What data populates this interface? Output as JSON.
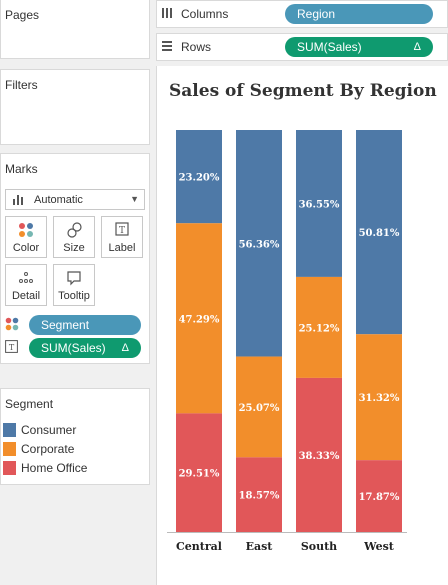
{
  "sidebar": {
    "pages": {
      "title": "Pages"
    },
    "filters": {
      "title": "Filters"
    },
    "marks": {
      "title": "Marks",
      "mark_type": "Automatic",
      "buttons": [
        {
          "label": "Color",
          "icon": "color-dots-icon"
        },
        {
          "label": "Size",
          "icon": "size-icon"
        },
        {
          "label": "Label",
          "icon": "label-icon"
        },
        {
          "label": "Detail",
          "icon": "detail-icon"
        },
        {
          "label": "Tooltip",
          "icon": "tooltip-icon"
        }
      ],
      "fields": [
        {
          "label": "Segment",
          "encoding": "color"
        },
        {
          "label": "SUM(Sales)",
          "encoding": "label",
          "delta": "Δ"
        }
      ]
    },
    "legend": {
      "title": "Segment",
      "items": [
        {
          "label": "Consumer",
          "color": "#4e79a7"
        },
        {
          "label": "Corporate",
          "color": "#f28e2b"
        },
        {
          "label": "Home Office",
          "color": "#e15759"
        }
      ]
    }
  },
  "shelves": {
    "columns": {
      "label": "Columns",
      "pill": "Region"
    },
    "rows": {
      "label": "Rows",
      "pill": "SUM(Sales)",
      "delta": "Δ"
    }
  },
  "chart_data": {
    "type": "bar",
    "stacked": true,
    "percent_of_total": true,
    "title": "Sales of Segment By Region",
    "categories": [
      "Central",
      "East",
      "South",
      "West"
    ],
    "series": [
      {
        "name": "Consumer",
        "color": "#4e79a7",
        "values": [
          23.2,
          56.36,
          36.55,
          50.81
        ]
      },
      {
        "name": "Corporate",
        "color": "#f28e2b",
        "values": [
          47.29,
          25.07,
          25.12,
          31.32
        ]
      },
      {
        "name": "Home Office",
        "color": "#e15759",
        "values": [
          29.51,
          18.57,
          38.33,
          17.87
        ]
      }
    ],
    "labels": [
      [
        "23.20%",
        "56.36%",
        "36.55%",
        "50.81%"
      ],
      [
        "47.29%",
        "25.07%",
        "25.12%",
        "31.32%"
      ],
      [
        "29.51%",
        "18.57%",
        "38.33%",
        "17.87%"
      ]
    ],
    "ylim": [
      0,
      100
    ],
    "grid": false,
    "legend": "left panel"
  }
}
